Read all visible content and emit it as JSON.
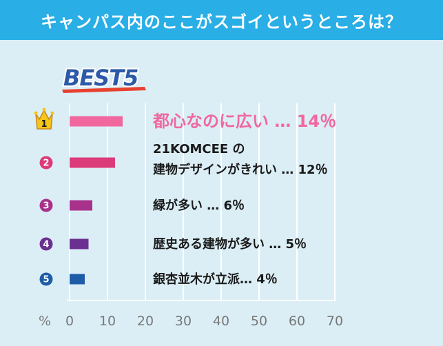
{
  "header": {
    "title": "キャンパス内のここがスゴイというところは？"
  },
  "badge": {
    "text": "BEST5"
  },
  "colors": {
    "header_bg": "#29aee6",
    "background": "#dbeef6",
    "crown": "#f5c518",
    "rank1_bar": "#f0689e",
    "rank2": "#dc3b7a",
    "rank3": "#a8318a",
    "rank4": "#6b2f8f",
    "rank5": "#1f5ca8"
  },
  "chart_data": {
    "type": "bar",
    "orientation": "horizontal",
    "unit_label": "%",
    "xlim": [
      0,
      70
    ],
    "ticks": [
      "0",
      "10",
      "20",
      "30",
      "40",
      "50",
      "60",
      "70"
    ],
    "grid": true,
    "items": [
      {
        "rank": "1",
        "label_lines": [
          "都心なのに広い …  14％"
        ],
        "value": 14
      },
      {
        "rank": "2",
        "label_lines": [
          "21KOMCEE の",
          "建物デザインがきれい …  12％"
        ],
        "value": 12
      },
      {
        "rank": "3",
        "label_lines": [
          "緑が多い …  6％"
        ],
        "value": 6
      },
      {
        "rank": "4",
        "label_lines": [
          "歴史ある建物が多い …  5％"
        ],
        "value": 5
      },
      {
        "rank": "5",
        "label_lines": [
          "銀杏並木が立派…  4％"
        ],
        "value": 4
      }
    ]
  }
}
